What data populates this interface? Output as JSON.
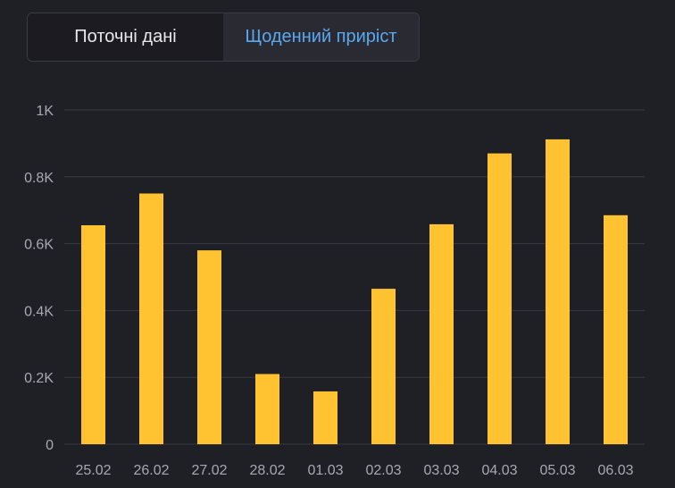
{
  "tabs": [
    {
      "label": "Поточні дані",
      "active": false
    },
    {
      "label": "Щоденний приріст",
      "active": true
    }
  ],
  "colors": {
    "bar": "#ffc332",
    "grid": "#3a3a44",
    "active_tab_text": "#5aa9f0"
  },
  "chart_data": {
    "type": "bar",
    "categories": [
      "25.02",
      "26.02",
      "27.02",
      "28.02",
      "01.03",
      "02.03",
      "03.03",
      "04.03",
      "05.03",
      "06.03"
    ],
    "values": [
      655,
      750,
      580,
      210,
      158,
      465,
      658,
      870,
      912,
      685
    ],
    "ylim": [
      0,
      1000
    ],
    "yticks": [
      {
        "value": 0,
        "label": "0"
      },
      {
        "value": 200,
        "label": "0.2K"
      },
      {
        "value": 400,
        "label": "0.4K"
      },
      {
        "value": 600,
        "label": "0.6K"
      },
      {
        "value": 800,
        "label": "0.8K"
      },
      {
        "value": 1000,
        "label": "1K"
      }
    ],
    "grid": true,
    "legend": "none"
  }
}
